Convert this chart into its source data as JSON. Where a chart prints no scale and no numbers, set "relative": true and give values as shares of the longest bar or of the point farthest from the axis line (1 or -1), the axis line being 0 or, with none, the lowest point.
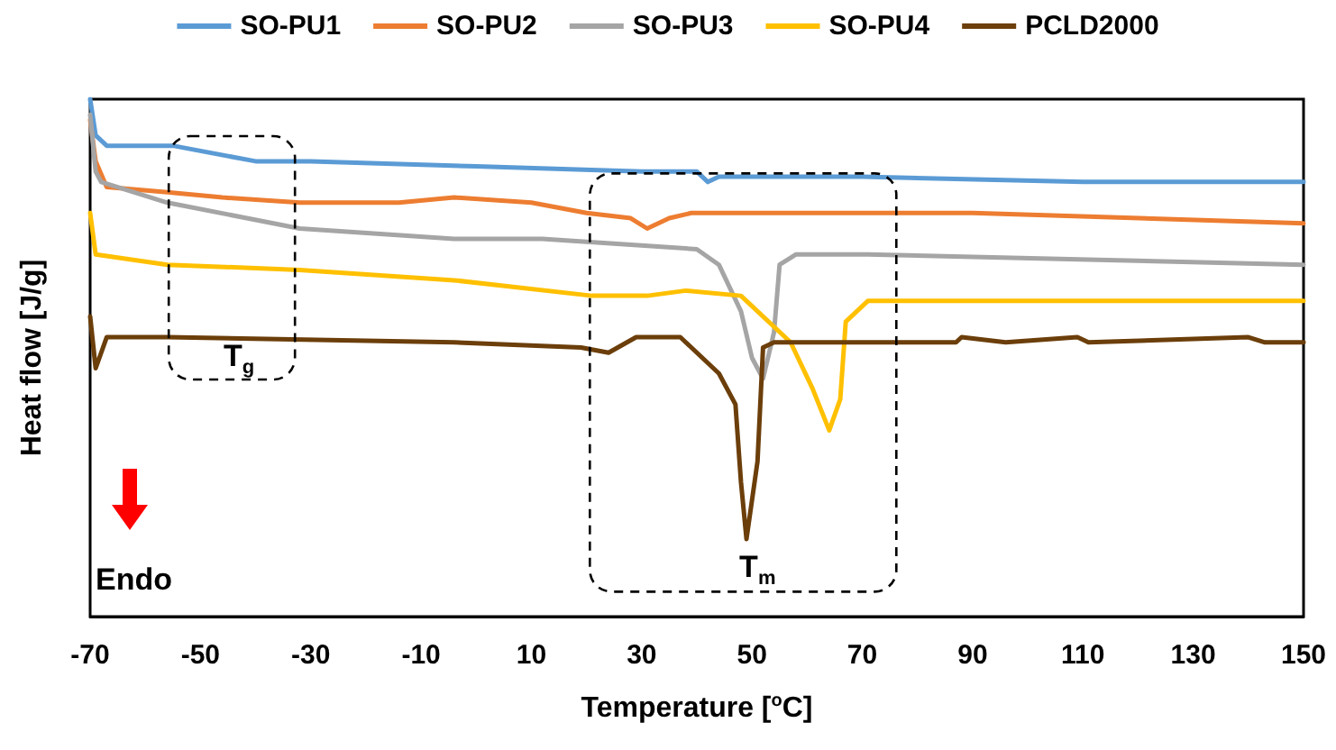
{
  "chart_data": {
    "type": "line",
    "relative": true,
    "xlabel": "Temperature [$^{o}$C]",
    "ylabel": "Heat flow [J/g]",
    "xlim": [
      -70,
      150
    ],
    "xticks": [
      -70,
      -50,
      -30,
      -10,
      10,
      30,
      50,
      70,
      90,
      110,
      130,
      150
    ],
    "legend": "top",
    "grid": false,
    "marker": "none",
    "line_style": "solid",
    "annotations": [
      "T$_{g}$",
      "T$_{m}$",
      "Endo"
    ],
    "series": [
      {
        "name": "SO-PU1",
        "color": "#5b9bd5",
        "x": [
          -70,
          -69,
          -67,
          -55,
          -40,
          -30,
          0,
          30,
          40,
          42,
          44,
          50,
          70,
          110,
          150
        ],
        "values": [
          1.0,
          0.93,
          0.91,
          0.91,
          0.88,
          0.88,
          0.87,
          0.86,
          0.86,
          0.84,
          0.85,
          0.85,
          0.85,
          0.84,
          0.84
        ]
      },
      {
        "name": "SO-PU2",
        "color": "#ed7d31",
        "x": [
          -70,
          -69,
          -67,
          -56,
          -46,
          -32,
          -14,
          -4,
          10,
          20,
          28,
          31,
          35,
          39,
          61,
          90,
          150
        ],
        "values": [
          0.96,
          0.88,
          0.83,
          0.82,
          0.81,
          0.8,
          0.8,
          0.81,
          0.8,
          0.78,
          0.77,
          0.75,
          0.77,
          0.78,
          0.78,
          0.78,
          0.76
        ]
      },
      {
        "name": "SO-PU3",
        "color": "#a5a5a5",
        "x": [
          -70,
          -69,
          -68,
          -56,
          -32,
          -4,
          12,
          40,
          44,
          48,
          50,
          52,
          54,
          55,
          58,
          71,
          150
        ],
        "values": [
          0.97,
          0.86,
          0.84,
          0.8,
          0.75,
          0.73,
          0.73,
          0.71,
          0.68,
          0.59,
          0.5,
          0.46,
          0.55,
          0.68,
          0.7,
          0.7,
          0.68
        ]
      },
      {
        "name": "SO-PU4",
        "color": "#ffc000",
        "x": [
          -70,
          -69,
          -56,
          -32,
          -4,
          21,
          31,
          38,
          48,
          57,
          61,
          64,
          66,
          67,
          71,
          150
        ],
        "values": [
          0.78,
          0.7,
          0.68,
          0.67,
          0.65,
          0.62,
          0.62,
          0.63,
          0.62,
          0.53,
          0.44,
          0.36,
          0.42,
          0.57,
          0.61,
          0.61
        ]
      },
      {
        "name": "PCLD2000",
        "color": "#6b3e0a",
        "x": [
          -70,
          -69,
          -67,
          -56,
          -4,
          19,
          24,
          29,
          37,
          41,
          44,
          47,
          48,
          49,
          51,
          52,
          54,
          87,
          88,
          96,
          109,
          111,
          140,
          143,
          150
        ],
        "values": [
          0.58,
          0.48,
          0.54,
          0.54,
          0.53,
          0.52,
          0.51,
          0.54,
          0.54,
          0.5,
          0.47,
          0.41,
          0.26,
          0.15,
          0.3,
          0.52,
          0.53,
          0.53,
          0.54,
          0.53,
          0.54,
          0.53,
          0.54,
          0.53,
          0.53
        ]
      }
    ]
  }
}
